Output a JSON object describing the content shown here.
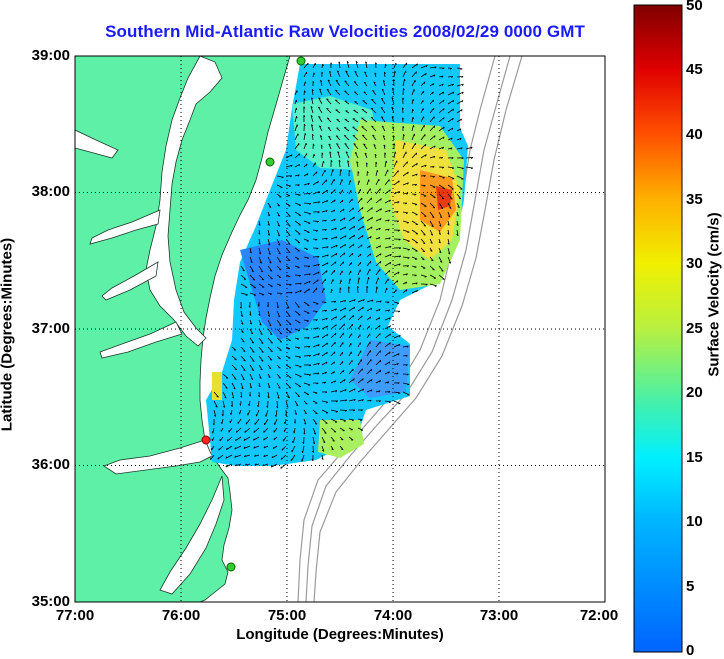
{
  "title": "Southern Mid-Atlantic Raw Velocities 2008/02/29 0000 GMT",
  "map": {
    "xlabel": "Longitude (Degrees:Minutes)",
    "ylabel": "Latitude (Degrees:Minutes)",
    "x_ticks": [
      "77:00",
      "76:00",
      "75:00",
      "74:00",
      "73:00",
      "72:00"
    ],
    "y_ticks": [
      "39:00",
      "38:00",
      "37:00",
      "36:00",
      "35:00"
    ],
    "lon_range": [
      -77,
      -72
    ],
    "lat_range": [
      35,
      39
    ],
    "grid": "dotted",
    "land_color": "#5ff0a8",
    "station_color": "#33cc33",
    "highlight_station_color": "#ff2222"
  },
  "colorbar": {
    "label": "Surface Velocity (cm/s)",
    "ticks": [
      "50",
      "45",
      "40",
      "35",
      "30",
      "25",
      "20",
      "15",
      "10",
      "5",
      "0"
    ],
    "range": [
      0,
      50
    ],
    "colormap": "jet"
  }
}
